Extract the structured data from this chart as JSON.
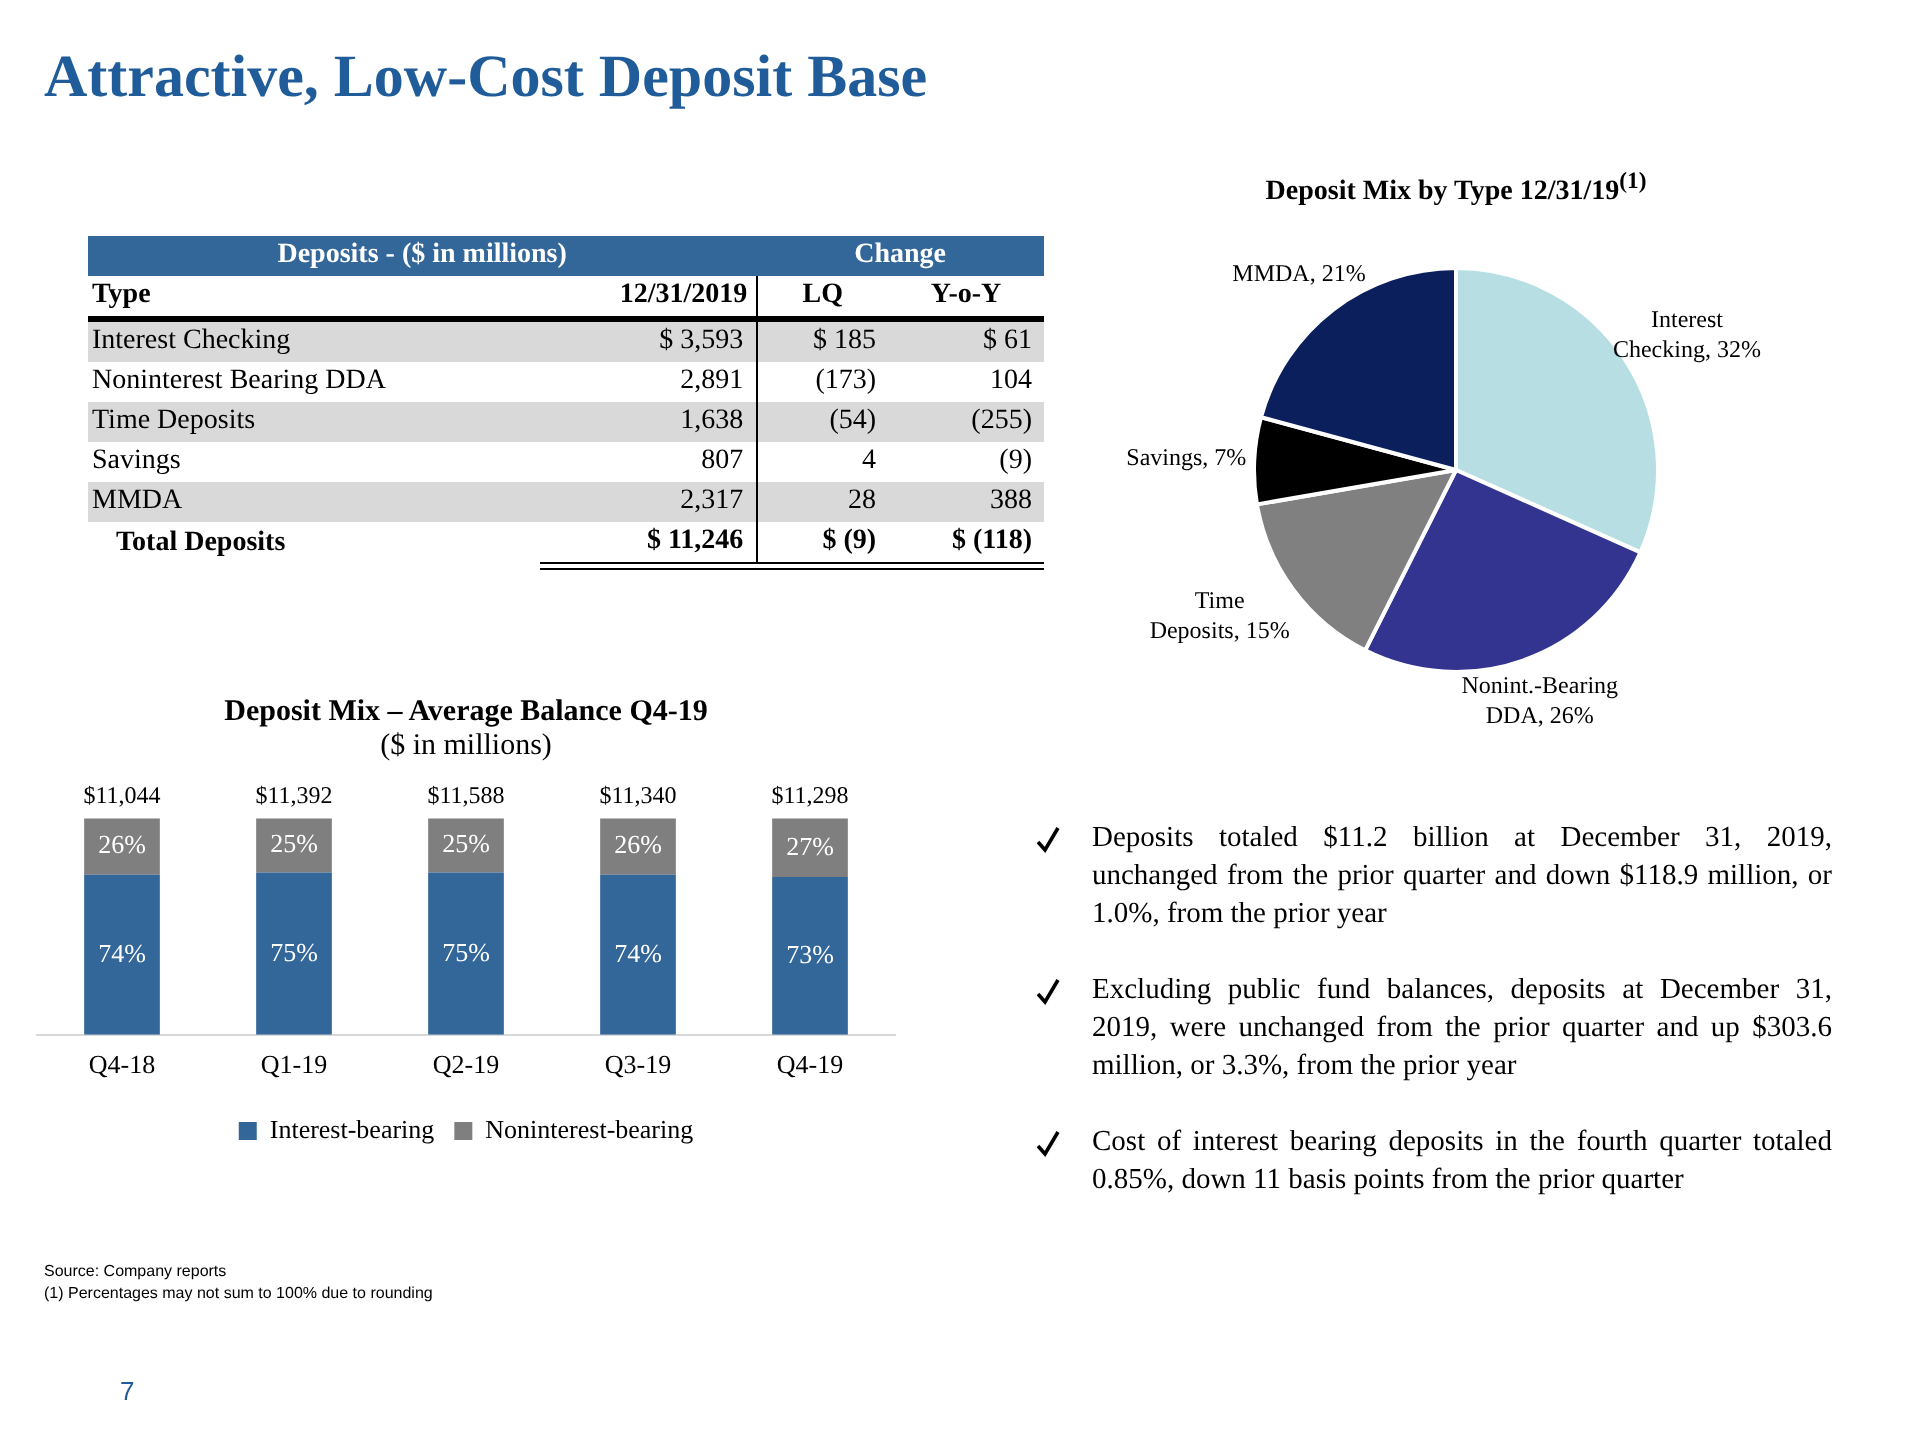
{
  "chart_data": [
    {
      "type": "other",
      "title": "Deposits - ($ in millions)",
      "subtitle": "Change",
      "xlabel": "Type",
      "annotations": [
        "Attractive, Low-Cost Deposit Base",
        "7"
      ],
      "categories": [
        "Interest Checking",
        "Noninterest Bearing DDA",
        "Time Deposits",
        "Savings",
        "MMDA",
        "Total Deposits"
      ],
      "series": [
        {
          "name": "12/31/2019",
          "values": [
            3593,
            2891,
            1638,
            807,
            2317,
            11246
          ],
          "value_labels": [
            "$ 3,593",
            "2,891",
            "1,638",
            "807",
            "2,317",
            "$ 11,246"
          ]
        },
        {
          "name": "LQ",
          "values": [
            185,
            -173,
            -54,
            4,
            28,
            -9
          ],
          "value_labels": [
            "$ 185",
            "(173)",
            "(54)",
            "4",
            "28",
            "$ (9)"
          ]
        },
        {
          "name": "Y-o-Y",
          "values": [
            61,
            104,
            -255,
            -9,
            388,
            -118
          ],
          "value_labels": [
            "$ 61",
            "104",
            "(255)",
            "(9)",
            "388",
            "$ (118)"
          ]
        }
      ]
    },
    {
      "type": "pie",
      "title": "Deposit Mix by Type 12/31/19$^{(1)}$",
      "categories": [
        "Interest Checking",
        "Nonint.-Bearing DDA",
        "Time Deposits",
        "Savings",
        "MMDA"
      ],
      "values": [
        32,
        26,
        15,
        7,
        21
      ],
      "value_labels": [
        "32%",
        "26%",
        "15%",
        "7%",
        "21%"
      ],
      "colors": [
        "#b7dfe3",
        "#33348f",
        "#808080",
        "#000000",
        "#0a1f5c"
      ],
      "annotations": [
        "Deposits totaled $11.2 billion at December 31, 2019, unchanged from the prior quarter and down $118.9 million, or 1.0%, from the prior year",
        "Excluding public fund balances, deposits at December 31, 2019, were unchanged from the prior quarter and up $303.6 million, or 3.3%, from the prior year",
        "Cost of interest bearing deposits in the fourth quarter totaled 0.85%, down 11 basis points from the prior quarter"
      ]
    },
    {
      "type": "bar",
      "stacked": true,
      "title": "Deposit Mix – Average Balance Q4-19",
      "subtitle": "($ in millions)",
      "legend": "bottom",
      "categories": [
        "Q4-18",
        "Q1-19",
        "Q2-19",
        "Q3-19",
        "Q4-19"
      ],
      "series": [
        {
          "name": "Interest-bearing",
          "color": "#336699",
          "values": [
            74,
            75,
            75,
            74,
            73
          ],
          "value_labels": [
            "74%",
            "75%",
            "75%",
            "74%",
            "73%"
          ]
        },
        {
          "name": "Noninterest-bearing",
          "color": "#7f7f7f",
          "values": [
            26,
            25,
            25,
            26,
            27
          ],
          "value_labels": [
            "26%",
            "25%",
            "25%",
            "26%",
            "27%"
          ]
        }
      ],
      "annotations": [
        {
          "text": "$11,044",
          "x": "Q4-18",
          "y": 100
        },
        {
          "text": "$11,392",
          "x": "Q1-19",
          "y": 100
        },
        {
          "text": "$11,588",
          "x": "Q2-19",
          "y": 100
        },
        {
          "text": "$11,340",
          "x": "Q3-19",
          "y": 100
        },
        {
          "text": "$11,298",
          "x": "Q4-19",
          "y": 100
        },
        "Source: Company reports",
        "(1) Percentages may not sum to 100% due to rounding"
      ]
    }
  ]
}
